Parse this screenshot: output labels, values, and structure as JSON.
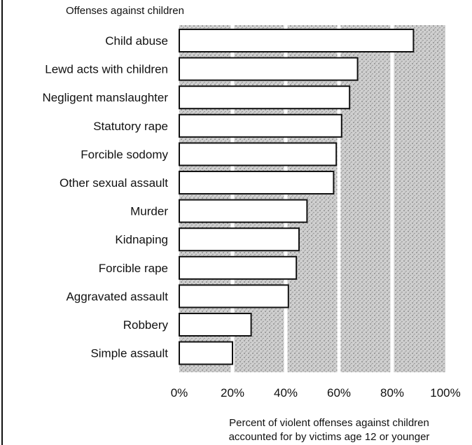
{
  "chart_data": {
    "type": "bar",
    "orientation": "horizontal",
    "category_axis_title": "Offenses against children",
    "categories": [
      "Child abuse",
      "Lewd acts with children",
      "Negligent manslaughter",
      "Statutory rape",
      "Forcible sodomy",
      "Other sexual assault",
      "Murder",
      "Kidnaping",
      "Forcible rape",
      "Aggravated assault",
      "Robbery",
      "Simple assault"
    ],
    "values": [
      88,
      67,
      64,
      61,
      59,
      58,
      48,
      45,
      44,
      41,
      27,
      20
    ],
    "xlim": [
      0,
      100
    ],
    "x_ticks": [
      "0%",
      "20%",
      "40%",
      "60%",
      "80%",
      "100%"
    ],
    "xlabel_lines": [
      "Percent of violent offenses against children",
      "accounted for by victims age 12 or younger"
    ],
    "grid": true,
    "background": "stippled gray",
    "colors": {
      "bar_fill": "#ffffff",
      "bar_stroke": "#111111",
      "plot_bg": "#c9c9c9",
      "grid": "#ffffff"
    }
  }
}
